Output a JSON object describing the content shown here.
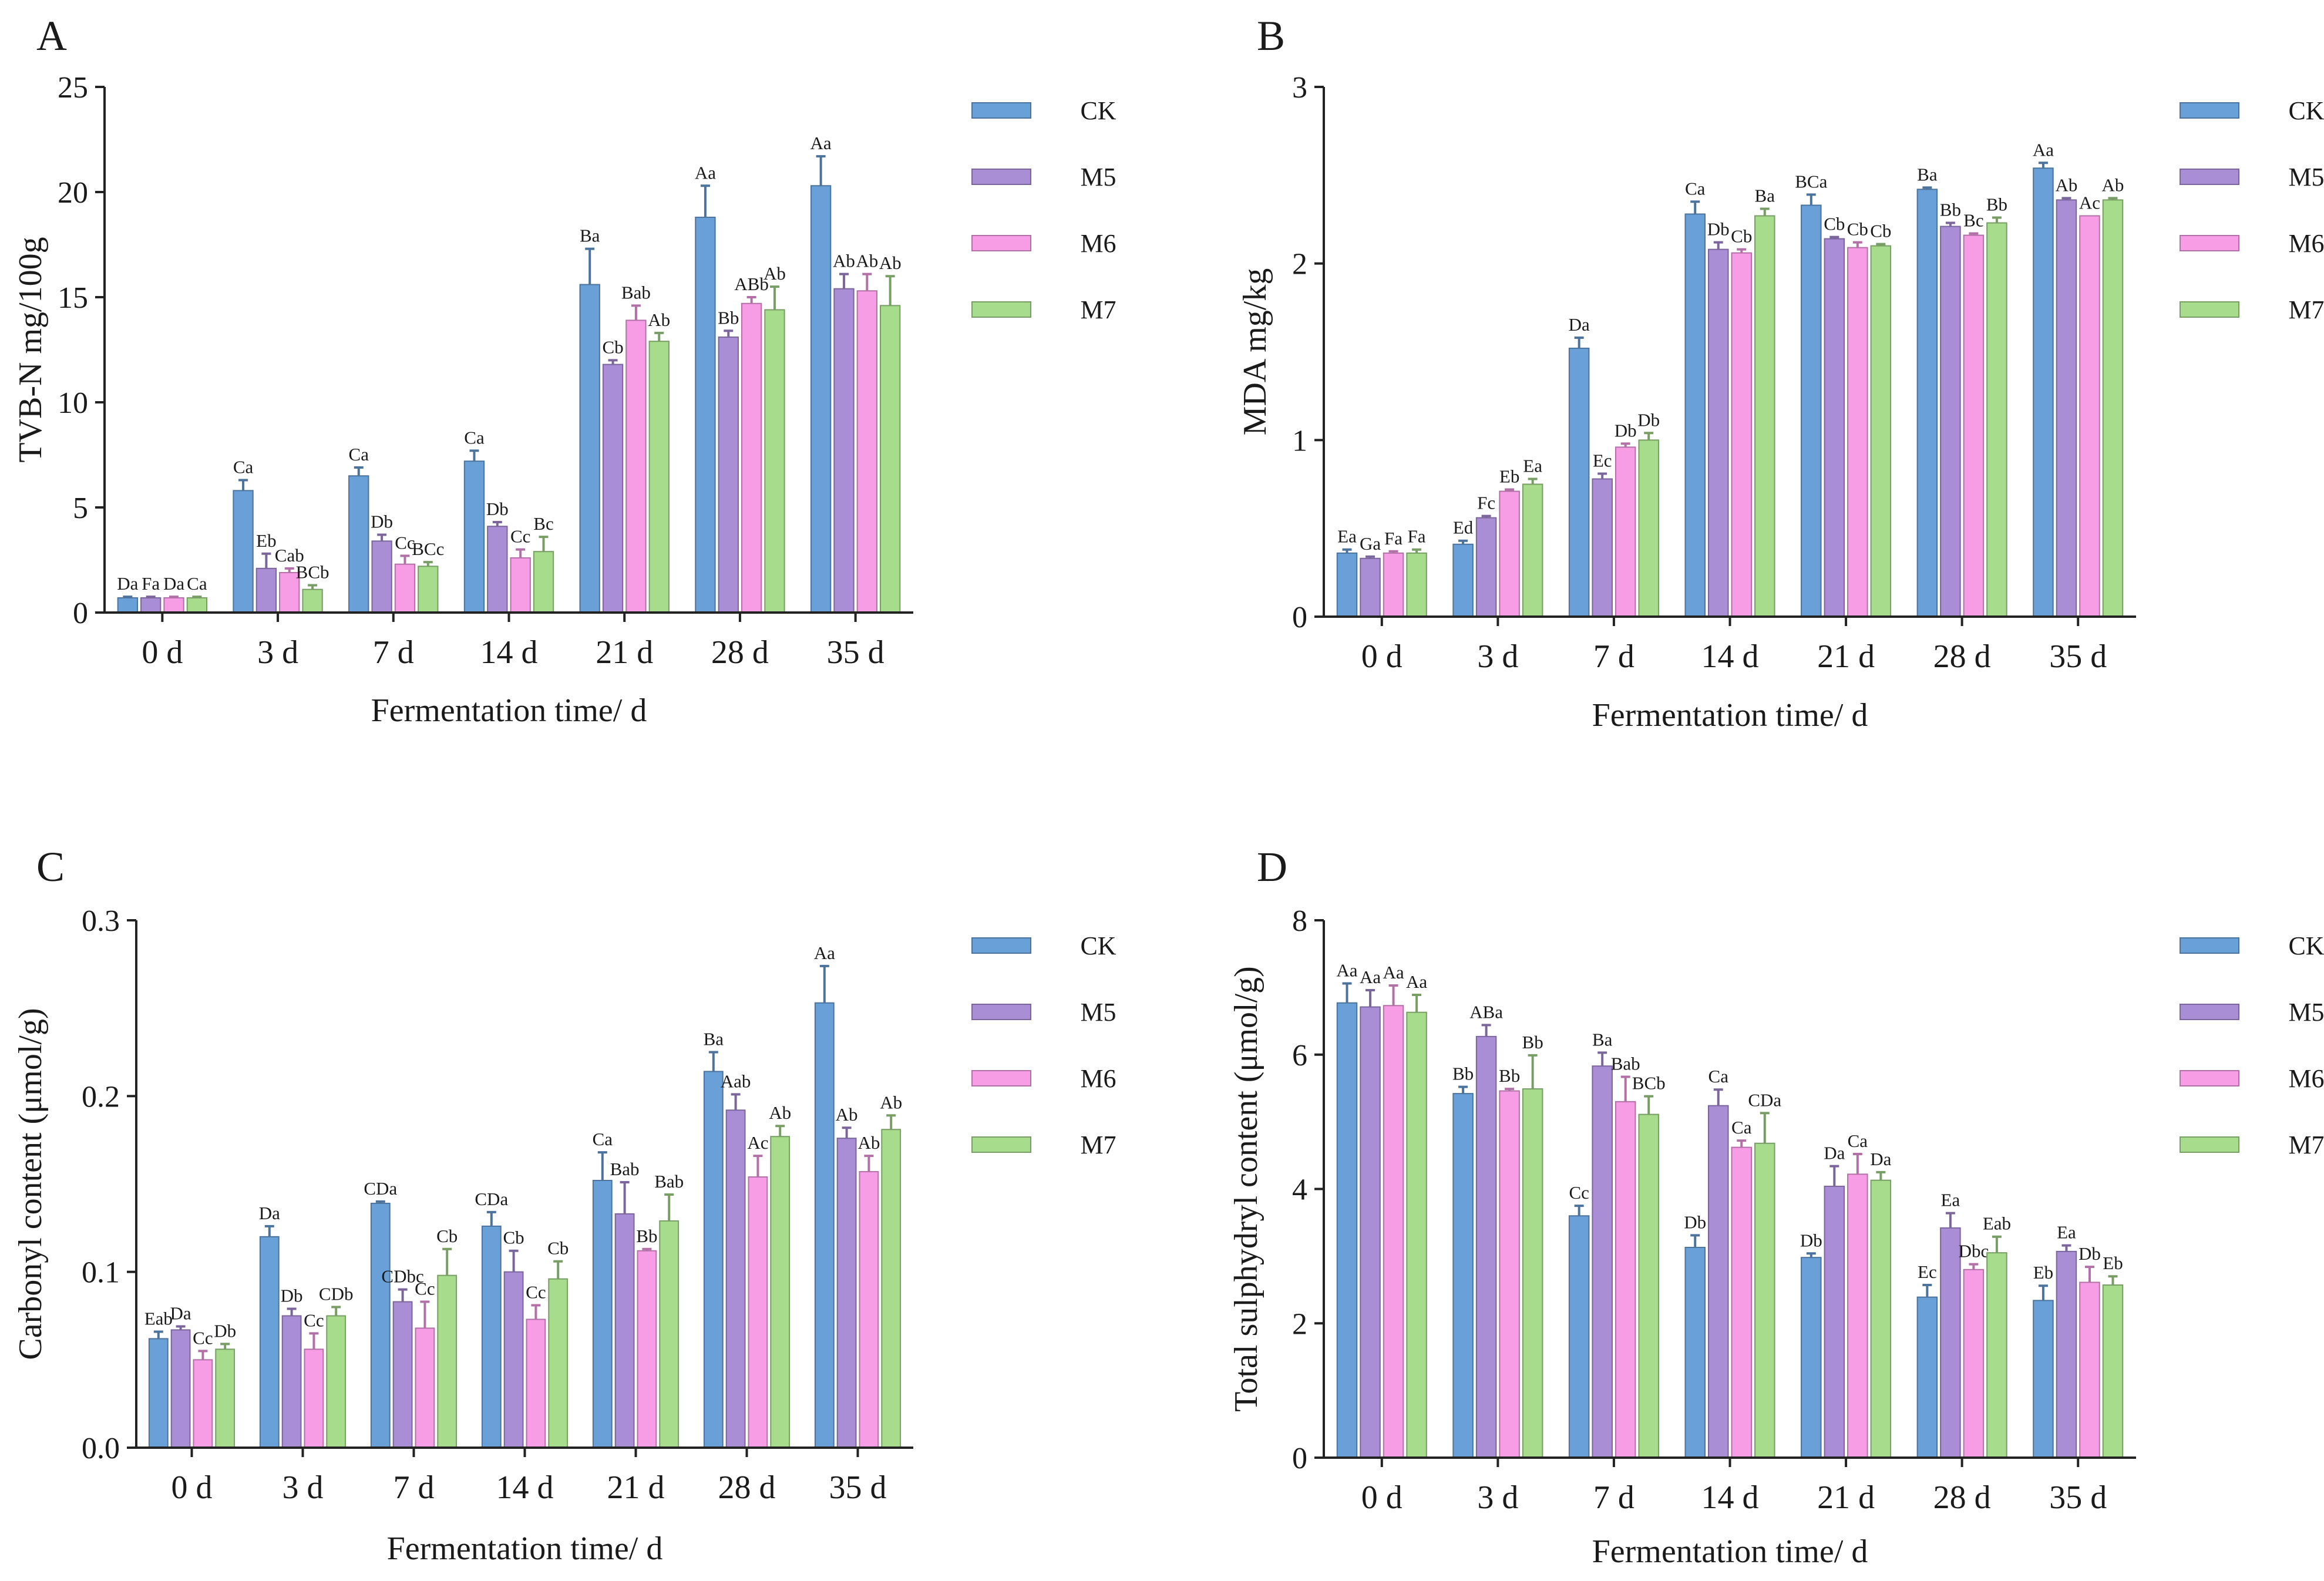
{
  "figure_title": "",
  "colors": {
    "CK": "#6aa0d8",
    "M5": "#a98ed6",
    "M6": "#f79de6",
    "M7": "#a6dc8c"
  },
  "chart_data": [
    {
      "panel": "A",
      "type": "bar",
      "title": "",
      "xlabel": "Fermentation time/ d",
      "ylabel": "TVB-N mg/100g",
      "ylim": [
        0,
        25
      ],
      "yticks": [
        0,
        5,
        10,
        15,
        20,
        25
      ],
      "yticklabels": [
        "0",
        "5",
        "10",
        "15",
        "20",
        "25"
      ],
      "categories": [
        "0 d",
        "3 d",
        "7 d",
        "14 d",
        "21 d",
        "28 d",
        "35 d"
      ],
      "legend": [
        "CK",
        "M5",
        "M6",
        "M7"
      ],
      "legend_position": "top-right (outside)",
      "series": [
        {
          "name": "CK",
          "values": [
            0.7,
            5.8,
            6.5,
            7.2,
            15.6,
            18.8,
            20.3
          ],
          "errors": [
            0.05,
            0.5,
            0.4,
            0.5,
            1.7,
            1.5,
            1.4
          ],
          "labels": [
            "Da",
            "Ca",
            "Ca",
            "Ca",
            "Ba",
            "Aa",
            "Aa"
          ]
        },
        {
          "name": "M5",
          "values": [
            0.7,
            2.1,
            3.4,
            4.1,
            11.8,
            13.1,
            15.4
          ],
          "errors": [
            0.05,
            0.7,
            0.3,
            0.2,
            0.2,
            0.3,
            0.7
          ],
          "labels": [
            "Fa",
            "Eb",
            "Db",
            "Db",
            "Cb",
            "Bb",
            "Ab"
          ]
        },
        {
          "name": "M6",
          "values": [
            0.7,
            1.9,
            2.3,
            2.6,
            13.9,
            14.7,
            15.3
          ],
          "errors": [
            0.05,
            0.2,
            0.4,
            0.4,
            0.7,
            0.3,
            0.8
          ],
          "labels": [
            "Da",
            "Cab",
            "Cc",
            "Cc",
            "Bab",
            "ABb",
            "Ab"
          ]
        },
        {
          "name": "M7",
          "values": [
            0.7,
            1.1,
            2.2,
            2.9,
            12.9,
            14.4,
            14.6
          ],
          "errors": [
            0.05,
            0.2,
            0.2,
            0.7,
            0.4,
            1.1,
            1.4
          ],
          "labels": [
            "Ca",
            "BCb",
            "BCc",
            "Bc",
            "Ab",
            "Ab",
            "Ab"
          ]
        }
      ]
    },
    {
      "panel": "B",
      "type": "bar",
      "title": "",
      "xlabel": "Fermentation time/ d",
      "ylabel": "MDA mg/kg",
      "ylim": [
        0,
        3
      ],
      "yticks": [
        0,
        1,
        2,
        3
      ],
      "yticklabels": [
        "0",
        "1",
        "2",
        "3"
      ],
      "categories": [
        "0 d",
        "3 d",
        "7 d",
        "14 d",
        "21 d",
        "28 d",
        "35 d"
      ],
      "legend": [
        "CK",
        "M5",
        "M6",
        "M7"
      ],
      "legend_position": "top-right (outside)",
      "series": [
        {
          "name": "CK",
          "values": [
            0.36,
            0.41,
            1.52,
            2.28,
            2.33,
            2.42,
            2.54
          ],
          "errors": [
            0.02,
            0.02,
            0.06,
            0.07,
            0.06,
            0.01,
            0.03
          ],
          "labels": [
            "Ea",
            "Ed",
            "Da",
            "Ca",
            "BCa",
            "Ba",
            "Aa"
          ]
        },
        {
          "name": "M5",
          "values": [
            0.33,
            0.56,
            0.78,
            2.08,
            2.14,
            2.21,
            2.36
          ],
          "errors": [
            0.01,
            0.01,
            0.03,
            0.04,
            0.01,
            0.02,
            0.01
          ],
          "labels": [
            "Ga",
            "Fc",
            "Ec",
            "Db",
            "Cb",
            "Bb",
            "Ab"
          ]
        },
        {
          "name": "M6",
          "values": [
            0.36,
            0.71,
            0.96,
            2.06,
            2.09,
            2.16,
            2.27
          ],
          "errors": [
            0.01,
            0.01,
            0.02,
            0.02,
            0.03,
            0.01,
            0.0
          ],
          "labels": [
            "Fa",
            "Eb",
            "Db",
            "Cb",
            "Cb",
            "Bc",
            "Ac"
          ]
        },
        {
          "name": "M7",
          "values": [
            0.36,
            0.75,
            1.0,
            2.27,
            2.1,
            2.23,
            2.36
          ],
          "errors": [
            0.02,
            0.03,
            0.04,
            0.04,
            0.01,
            0.03,
            0.01
          ],
          "labels": [
            "Fa",
            "Ea",
            "Db",
            "Ba",
            "Cb",
            "Bb",
            "Ab"
          ]
        }
      ]
    },
    {
      "panel": "C",
      "type": "bar",
      "title": "",
      "xlabel": "Fermentation time/ d",
      "ylabel": "Carbonyl content (μmol/g)",
      "ylim": [
        0,
        0.3
      ],
      "yticks": [
        0,
        0.1,
        0.2,
        0.3
      ],
      "yticklabels": [
        "0.0",
        "0.1",
        "0.2",
        "0.3"
      ],
      "categories": [
        "0 d",
        "3 d",
        "7 d",
        "14 d",
        "21 d",
        "28 d",
        "35 d"
      ],
      "legend": [
        "CK",
        "M5",
        "M6",
        "M7"
      ],
      "legend_position": "top-right (outside)",
      "series": [
        {
          "name": "CK",
          "values": [
            0.062,
            0.12,
            0.139,
            0.126,
            0.152,
            0.214,
            0.253
          ],
          "errors": [
            0.004,
            0.006,
            0.001,
            0.008,
            0.016,
            0.011,
            0.021
          ],
          "labels": [
            "Eab",
            "Da",
            "CDa",
            "CDa",
            "Ca",
            "Ba",
            "Aa"
          ]
        },
        {
          "name": "M5",
          "values": [
            0.067,
            0.075,
            0.083,
            0.1,
            0.133,
            0.192,
            0.176
          ],
          "errors": [
            0.002,
            0.004,
            0.007,
            0.012,
            0.018,
            0.009,
            0.006
          ],
          "labels": [
            "Da",
            "Db",
            "CDbc",
            "Cb",
            "Bab",
            "Aab",
            "Ab"
          ]
        },
        {
          "name": "M6",
          "values": [
            0.05,
            0.056,
            0.068,
            0.073,
            0.112,
            0.154,
            0.157
          ],
          "errors": [
            0.005,
            0.009,
            0.015,
            0.008,
            0.001,
            0.012,
            0.009
          ],
          "labels": [
            "Cc",
            "Cc",
            "Cc",
            "Cc",
            "Bb",
            "Ac",
            "Ab"
          ]
        },
        {
          "name": "M7",
          "values": [
            0.056,
            0.075,
            0.098,
            0.096,
            0.129,
            0.177,
            0.181
          ],
          "errors": [
            0.003,
            0.005,
            0.015,
            0.01,
            0.015,
            0.006,
            0.008
          ],
          "labels": [
            "Db",
            "CDb",
            "Cb",
            "Cb",
            "Bab",
            "Ab",
            "Ab"
          ]
        }
      ]
    },
    {
      "panel": "D",
      "type": "bar",
      "title": "",
      "xlabel": "Fermentation time/ d",
      "ylabel": "Total sulphydryl content  (μmol/g)",
      "ylim": [
        0,
        8
      ],
      "yticks": [
        0,
        2,
        4,
        6,
        8
      ],
      "yticklabels": [
        "0",
        "2",
        "4",
        "6",
        "8"
      ],
      "categories": [
        "0 d",
        "3 d",
        "7 d",
        "14 d",
        "21 d",
        "28 d",
        "35 d"
      ],
      "legend": [
        "CK",
        "M5",
        "M6",
        "M7"
      ],
      "legend_position": "top-right (outside)",
      "series": [
        {
          "name": "CK",
          "values": [
            6.77,
            5.42,
            3.6,
            3.13,
            2.98,
            2.39,
            2.34
          ],
          "errors": [
            0.29,
            0.1,
            0.15,
            0.18,
            0.06,
            0.18,
            0.22
          ],
          "labels": [
            "Aa",
            "Bb",
            "Cc",
            "Db",
            "Db",
            "Ec",
            "Eb"
          ]
        },
        {
          "name": "M5",
          "values": [
            6.71,
            6.27,
            5.83,
            5.24,
            4.04,
            3.42,
            3.07
          ],
          "errors": [
            0.25,
            0.17,
            0.2,
            0.24,
            0.3,
            0.22,
            0.09
          ],
          "labels": [
            "Aa",
            "ABa",
            "Ba",
            "Ca",
            "Da",
            "Ea",
            "Ea"
          ]
        },
        {
          "name": "M6",
          "values": [
            6.73,
            5.46,
            5.3,
            4.62,
            4.22,
            2.8,
            2.61
          ],
          "errors": [
            0.3,
            0.03,
            0.37,
            0.1,
            0.3,
            0.08,
            0.23
          ],
          "labels": [
            "Aa",
            "Bb",
            "Bab",
            "Ca",
            "Ca",
            "Dbc",
            "Db"
          ]
        },
        {
          "name": "M7",
          "values": [
            6.63,
            5.49,
            5.11,
            4.68,
            4.13,
            3.05,
            2.57
          ],
          "errors": [
            0.26,
            0.5,
            0.27,
            0.45,
            0.12,
            0.24,
            0.13
          ],
          "labels": [
            "Aa",
            "Bb",
            "BCb",
            "CDa",
            "Da",
            "Eab",
            "Eb"
          ]
        }
      ]
    }
  ]
}
